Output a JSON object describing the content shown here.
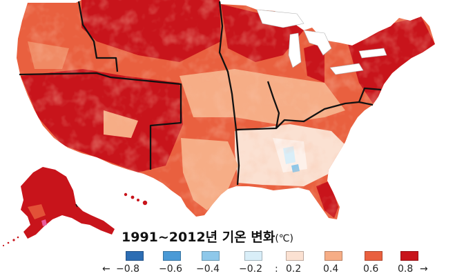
{
  "legend": {
    "title": "1991~2012년 기온 변화",
    "unit": "(℃)",
    "left_arrow": "←",
    "right_arrow": "→",
    "separator": ":",
    "classes": [
      {
        "label": "−0.8",
        "color": "#2c6db3"
      },
      {
        "label": "−0.6",
        "color": "#4a9ad6"
      },
      {
        "label": "−0.4",
        "color": "#8ec8ea"
      },
      {
        "label": "−0.2",
        "color": "#d9eef8"
      },
      {
        "label": "0.2",
        "color": "#fbe1d2"
      },
      {
        "label": "0.4",
        "color": "#f6ad86"
      },
      {
        "label": "0.6",
        "color": "#e9603f"
      },
      {
        "label": "0.8",
        "color": "#c8141b"
      }
    ]
  }
}
